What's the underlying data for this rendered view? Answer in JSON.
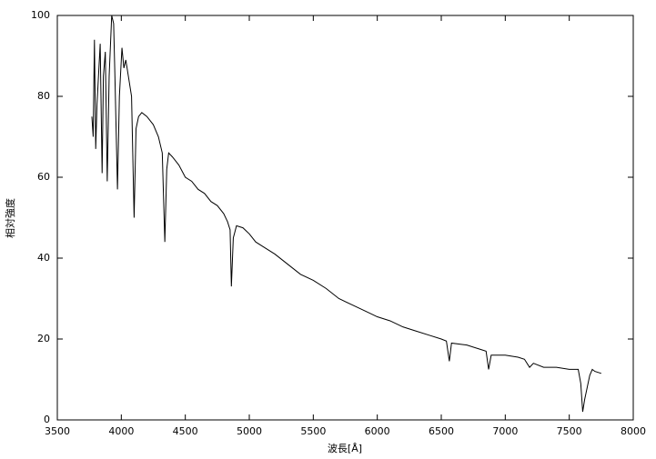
{
  "chart_data": {
    "type": "line",
    "x_label": "波長[Å]",
    "y_label": "相対強度",
    "color": "#000000",
    "grid": false,
    "xlim": [
      3500,
      8000
    ],
    "xticks": [
      3500,
      4000,
      4500,
      5000,
      5500,
      6000,
      6500,
      7000,
      7500,
      8000
    ],
    "ylim": [
      0,
      100
    ],
    "yticks": [
      0,
      20,
      40,
      60,
      80,
      100
    ],
    "x": [
      3770,
      3780,
      3790,
      3800,
      3810,
      3835,
      3850,
      3860,
      3875,
      3890,
      3905,
      3925,
      3940,
      3950,
      3970,
      3985,
      4005,
      4020,
      4035,
      4060,
      4080,
      4100,
      4115,
      4135,
      4160,
      4200,
      4250,
      4290,
      4320,
      4340,
      4355,
      4370,
      4400,
      4450,
      4500,
      4550,
      4600,
      4650,
      4700,
      4750,
      4800,
      4830,
      4850,
      4860,
      4875,
      4900,
      4950,
      5000,
      5050,
      5100,
      5200,
      5300,
      5400,
      5500,
      5600,
      5700,
      5800,
      5900,
      6000,
      6100,
      6200,
      6300,
      6400,
      6500,
      6540,
      6563,
      6580,
      6700,
      6800,
      6850,
      6870,
      6890,
      7000,
      7100,
      7150,
      7190,
      7220,
      7300,
      7400,
      7500,
      7570,
      7590,
      7605,
      7620,
      7640,
      7660,
      7680,
      7700,
      7750
    ],
    "values": [
      75,
      70,
      94,
      67,
      78,
      93,
      61,
      85,
      91,
      59,
      85,
      100,
      98,
      85,
      57,
      80,
      92,
      87,
      89,
      84,
      80,
      50,
      72,
      75,
      76,
      75,
      73,
      70,
      66,
      44,
      62,
      66,
      65,
      63,
      60,
      59,
      57,
      56,
      54,
      53,
      51,
      49,
      47,
      33,
      45,
      48,
      47.5,
      46,
      44,
      43,
      41,
      38.5,
      36,
      34.5,
      32.5,
      30,
      28.5,
      27,
      25.5,
      24.5,
      23,
      22,
      21,
      20,
      19.5,
      14.5,
      19,
      18.5,
      17.5,
      17,
      12.5,
      16,
      16,
      15.5,
      15,
      13,
      14,
      13,
      13,
      12.5,
      12.5,
      9,
      2,
      5,
      8,
      11,
      12.5,
      12,
      11.5
    ]
  }
}
